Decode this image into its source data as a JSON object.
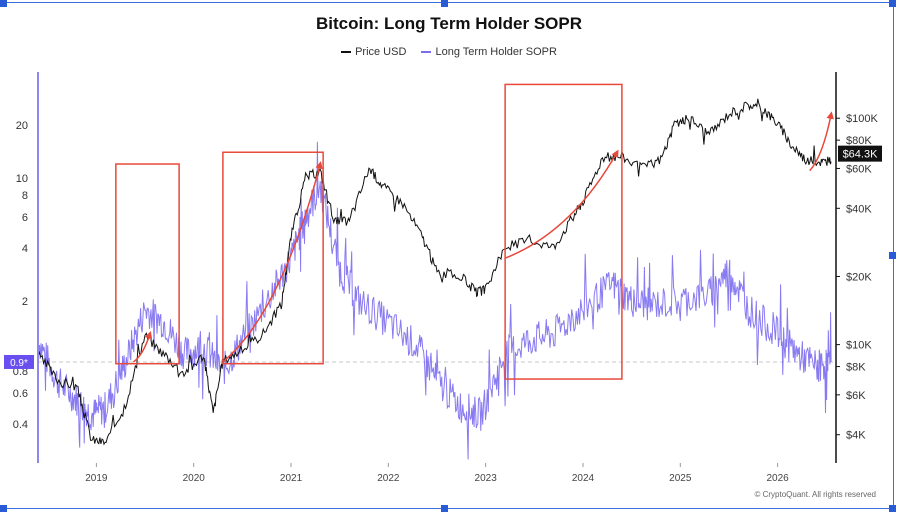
{
  "colors": {
    "price": "#111111",
    "sopr": "#7b6cf0",
    "boxes": "#e8493a",
    "sopr_marker_bg": "#6a4ff0",
    "price_marker_bg": "#111111"
  },
  "chart_data": {
    "type": "line",
    "title": "Bitcoin: Long Term Holder SOPR",
    "legend": [
      "Price USD",
      "Long Term Holder SOPR"
    ],
    "legend_placement": "top-center",
    "x_ticks": [
      "2019",
      "2020",
      "2021",
      "2022",
      "2023",
      "2024",
      "2025",
      "2026"
    ],
    "xlim": [
      2018.4,
      2026.6
    ],
    "left_axis": {
      "scale": "log",
      "ticks": [
        "20",
        "10",
        "8",
        "6",
        "4",
        "2",
        "0.8",
        "0.6",
        "0.4"
      ],
      "ylim": [
        0.24,
        40
      ]
    },
    "right_axis": {
      "scale": "log",
      "ticks": [
        "$100K",
        "$80K",
        "$60K",
        "$40K",
        "$20K",
        "$10K",
        "$8K",
        "$6K",
        "$4K"
      ],
      "ylim": [
        3000,
        160000
      ]
    },
    "reference_line": {
      "value": 0.9,
      "label": "0.9*"
    },
    "last_price_label": "$64.3K",
    "series": [
      {
        "name": "Price USD",
        "axis": "right",
        "x": [
          2018.4,
          2018.6,
          2018.8,
          2018.95,
          2019.1,
          2019.3,
          2019.5,
          2019.7,
          2019.9,
          2020.1,
          2020.2,
          2020.3,
          2020.5,
          2020.7,
          2020.9,
          2021.0,
          2021.15,
          2021.3,
          2021.45,
          2021.6,
          2021.8,
          2021.95,
          2022.15,
          2022.35,
          2022.5,
          2022.75,
          2022.9,
          2023.0,
          2023.2,
          2023.45,
          2023.7,
          2023.9,
          2024.0,
          2024.2,
          2024.4,
          2024.6,
          2024.8,
          2024.95,
          2025.1,
          2025.3,
          2025.5,
          2025.7,
          2025.85,
          2026.0,
          2026.15,
          2026.3,
          2026.45,
          2026.55
        ],
        "y": [
          9000,
          7000,
          6500,
          3800,
          3700,
          5500,
          11000,
          9000,
          7500,
          9000,
          5000,
          8500,
          9500,
          11000,
          15000,
          30000,
          55000,
          58000,
          35000,
          35000,
          60000,
          50000,
          42000,
          30000,
          21000,
          20000,
          17000,
          17500,
          27000,
          29000,
          27000,
          37000,
          43000,
          67000,
          68000,
          60000,
          66000,
          95000,
          100000,
          85000,
          105000,
          115000,
          110000,
          95000,
          75000,
          65000,
          64300,
          64300
        ]
      },
      {
        "name": "Long Term Holder SOPR",
        "axis": "left",
        "x": [
          2018.4,
          2018.6,
          2018.8,
          2018.95,
          2019.1,
          2019.3,
          2019.5,
          2019.7,
          2019.9,
          2020.1,
          2020.3,
          2020.5,
          2020.8,
          2021.0,
          2021.15,
          2021.3,
          2021.5,
          2021.7,
          2022.0,
          2022.3,
          2022.5,
          2022.75,
          2022.95,
          2023.2,
          2023.45,
          2023.7,
          2024.0,
          2024.3,
          2024.5,
          2024.7,
          2025.0,
          2025.3,
          2025.5,
          2025.7,
          2026.0,
          2026.2,
          2026.4,
          2026.55
        ],
        "y": [
          1.2,
          0.7,
          0.55,
          0.45,
          0.5,
          0.9,
          1.8,
          1.5,
          1.0,
          1.1,
          0.8,
          1.2,
          2.2,
          3.5,
          6.0,
          9.0,
          3.0,
          2.0,
          1.5,
          1.1,
          0.7,
          0.5,
          0.45,
          1.0,
          1.2,
          1.3,
          1.8,
          2.5,
          2.0,
          1.9,
          2.0,
          2.2,
          3.0,
          1.8,
          1.3,
          1.0,
          0.85,
          0.9
        ]
      }
    ],
    "annotations": [
      {
        "type": "box",
        "x": [
          2019.2,
          2019.85
        ],
        "y": [
          0.88,
          12
        ]
      },
      {
        "type": "box",
        "x": [
          2020.3,
          2021.33
        ],
        "y": [
          0.88,
          14
        ]
      },
      {
        "type": "box",
        "x": [
          2023.2,
          2024.4
        ],
        "y": [
          0.72,
          34
        ]
      },
      {
        "type": "trend",
        "x": [
          2019.38,
          2019.55
        ],
        "y": [
          0.9,
          1.3
        ]
      },
      {
        "type": "trend",
        "x": [
          2020.3,
          2021.3
        ],
        "y": [
          0.9,
          12
        ]
      },
      {
        "type": "trend",
        "x": [
          2023.2,
          2024.35
        ],
        "y": [
          3.5,
          14
        ]
      },
      {
        "type": "trend",
        "x": [
          2026.33,
          2026.55
        ],
        "y": [
          11,
          23
        ]
      }
    ]
  },
  "credit": "© CryptoQuant. All rights reserved"
}
